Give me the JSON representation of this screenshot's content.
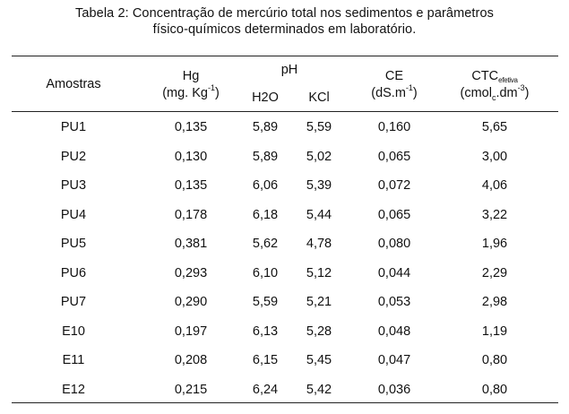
{
  "caption": {
    "line1": "Tabela 2: Concentração de mercúrio total nos sedimentos e parâmetros",
    "line2": "físico-químicos determinados em laboratório."
  },
  "headers": {
    "amostras": "Amostras",
    "hg": "Hg",
    "hg_unit_base": "(mg. Kg",
    "hg_unit_exp": "-1",
    "hg_unit_close": ")",
    "ph": "pH",
    "h2o": "H2O",
    "kcl": "KCl",
    "ce": "CE",
    "ce_unit_base": "(dS.m",
    "ce_unit_exp": "-1",
    "ce_unit_close": ")",
    "ctc": "CTC",
    "ctc_sub": "efetiva",
    "ctc_unit_a": "(cmol",
    "ctc_unit_sub": "c",
    "ctc_unit_b": ".dm",
    "ctc_unit_exp": "-3",
    "ctc_unit_close": ")"
  },
  "rows": [
    {
      "amostra": "PU1",
      "hg": "0,135",
      "h2o": "5,89",
      "kcl": "5,59",
      "ce": "0,160",
      "ctc": "5,65"
    },
    {
      "amostra": "PU2",
      "hg": "0,130",
      "h2o": "5,89",
      "kcl": "5,02",
      "ce": "0,065",
      "ctc": "3,00"
    },
    {
      "amostra": "PU3",
      "hg": "0,135",
      "h2o": "6,06",
      "kcl": "5,39",
      "ce": "0,072",
      "ctc": "4,06"
    },
    {
      "amostra": "PU4",
      "hg": "0,178",
      "h2o": "6,18",
      "kcl": "5,44",
      "ce": "0,065",
      "ctc": "3,22"
    },
    {
      "amostra": "PU5",
      "hg": "0,381",
      "h2o": "5,62",
      "kcl": "4,78",
      "ce": "0,080",
      "ctc": "1,96"
    },
    {
      "amostra": "PU6",
      "hg": "0,293",
      "h2o": "6,10",
      "kcl": "5,12",
      "ce": "0,044",
      "ctc": "2,29"
    },
    {
      "amostra": "PU7",
      "hg": "0,290",
      "h2o": "5,59",
      "kcl": "5,21",
      "ce": "0,053",
      "ctc": "2,98"
    },
    {
      "amostra": "E10",
      "hg": "0,197",
      "h2o": "6,13",
      "kcl": "5,28",
      "ce": "0,048",
      "ctc": "1,19"
    },
    {
      "amostra": "E11",
      "hg": "0,208",
      "h2o": "6,15",
      "kcl": "5,45",
      "ce": "0,047",
      "ctc": "0,80"
    },
    {
      "amostra": "E12",
      "hg": "0,215",
      "h2o": "6,24",
      "kcl": "5,42",
      "ce": "0,036",
      "ctc": "0,80"
    }
  ]
}
